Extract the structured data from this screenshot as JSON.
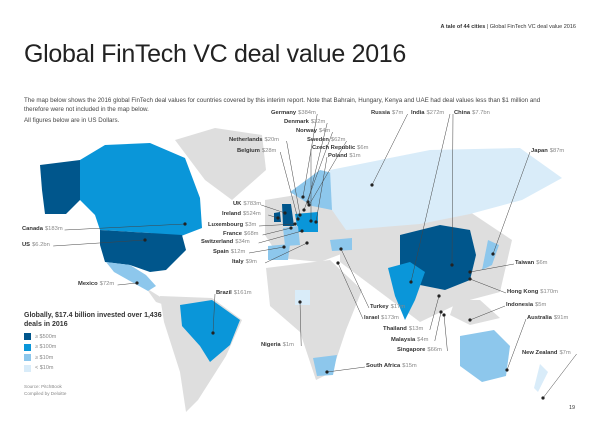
{
  "header": {
    "report": "A tale of 44 cities",
    "separator": "|",
    "section": "Global FinTech VC deal value 2016"
  },
  "title": "Global FinTech VC deal value 2016",
  "intro": "The map below shows the 2016 global FinTech deal values for countries covered by this interim report. Note that Bahrain, Hungary, Kenya and UAE had deal values less than $1 million and therefore were not included in the map below.",
  "currency_note": "All figures below are in US Dollars.",
  "colors": {
    "tier1": "#00568c",
    "tier2": "#0a96d9",
    "tier3": "#8dc7ec",
    "tier4": "#d9ecf9",
    "other": "#dedede"
  },
  "countries": [
    {
      "name": "Germany",
      "value": "$384m"
    },
    {
      "name": "Denmark",
      "value": "$32m"
    },
    {
      "name": "Norway",
      "value": "$4m"
    },
    {
      "name": "Sweden",
      "value": "$62m"
    },
    {
      "name": "Czech Republic",
      "value": "$6m"
    },
    {
      "name": "Poland",
      "value": "$1m"
    },
    {
      "name": "Netherlands",
      "value": "$20m"
    },
    {
      "name": "Belgium",
      "value": "$28m"
    },
    {
      "name": "Russia",
      "value": "$7m"
    },
    {
      "name": "India",
      "value": "$272m"
    },
    {
      "name": "China",
      "value": "$7.7bn"
    },
    {
      "name": "Japan",
      "value": "$87m"
    },
    {
      "name": "UK",
      "value": "$783m"
    },
    {
      "name": "Ireland",
      "value": "$524m"
    },
    {
      "name": "Luxembourg",
      "value": "$3m"
    },
    {
      "name": "France",
      "value": "$68m"
    },
    {
      "name": "Switzerland",
      "value": "$34m"
    },
    {
      "name": "Spain",
      "value": "$12m"
    },
    {
      "name": "Italy",
      "value": "$9m"
    },
    {
      "name": "Taiwan",
      "value": "$6m"
    },
    {
      "name": "Canada",
      "value": "$183m"
    },
    {
      "name": "US",
      "value": "$6.2bn"
    },
    {
      "name": "Mexico",
      "value": "$72m"
    },
    {
      "name": "Brazil",
      "value": "$161m"
    },
    {
      "name": "Hong Kong",
      "value": "$170m"
    },
    {
      "name": "Indonesia",
      "value": "$5m"
    },
    {
      "name": "Turkey",
      "value": "$17m"
    },
    {
      "name": "Israel",
      "value": "$173m"
    },
    {
      "name": "Australia",
      "value": "$91m"
    },
    {
      "name": "Thailand",
      "value": "$13m"
    },
    {
      "name": "Malaysia",
      "value": "$4m"
    },
    {
      "name": "Nigeria",
      "value": "$1m"
    },
    {
      "name": "Singapore",
      "value": "$66m"
    },
    {
      "name": "New Zealand",
      "value": "$7m"
    },
    {
      "name": "South Africa",
      "value": "$15m"
    }
  ],
  "global_summary": "Globally, $17.4 billion invested over 1,436 deals in 2016",
  "legend": [
    {
      "label": "≥ $500m",
      "color": "#00568c"
    },
    {
      "label": "≥ $100m",
      "color": "#0a96d9"
    },
    {
      "label": "≥ $10m",
      "color": "#8dc7ec"
    },
    {
      "label": "< $10m",
      "color": "#d9ecf9"
    }
  ],
  "source": "Source: PitchBook",
  "compiled": "Compiled by Deloitte",
  "page_number": "19"
}
